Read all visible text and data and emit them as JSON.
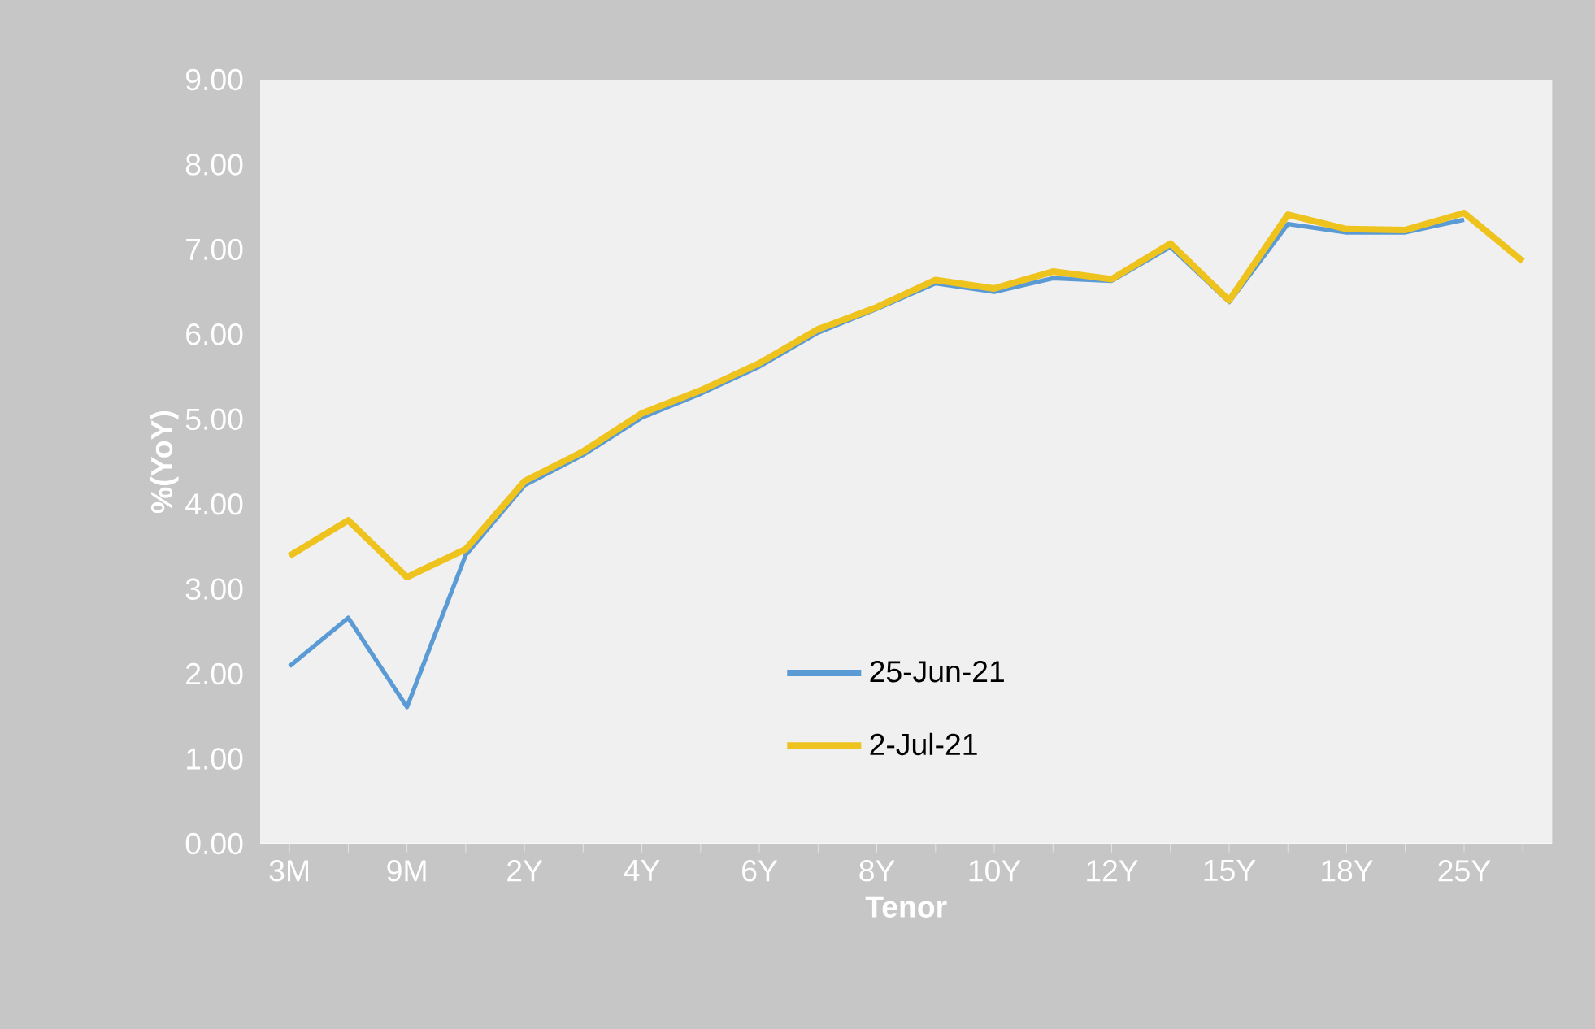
{
  "chart_data": {
    "type": "line",
    "xlabel": "Tenor",
    "ylabel": "%(YoY)",
    "categories": [
      "3M",
      null,
      "9M",
      null,
      "2Y",
      null,
      "4Y",
      null,
      "6Y",
      null,
      "8Y",
      null,
      "10Y",
      null,
      "12Y",
      null,
      "15Y",
      null,
      "18Y",
      null,
      "25Y",
      null
    ],
    "series": [
      {
        "name": "25-Jun-21",
        "color": "#5b9bd5",
        "values": [
          2.09,
          2.66,
          1.61,
          3.4,
          4.22,
          4.58,
          5.02,
          5.3,
          5.62,
          6.02,
          6.3,
          6.6,
          6.5,
          6.66,
          6.63,
          7.03,
          6.38,
          7.3,
          7.2,
          7.2,
          7.35,
          null
        ]
      },
      {
        "name": "2-Jul-21",
        "color": "#efc31d",
        "values": [
          3.39,
          3.81,
          3.14,
          3.47,
          4.27,
          4.62,
          5.07,
          5.34,
          5.66,
          6.06,
          6.32,
          6.64,
          6.54,
          6.74,
          6.65,
          7.07,
          6.4,
          7.41,
          7.24,
          7.23,
          7.43,
          6.86
        ]
      }
    ],
    "ylim": [
      0,
      9
    ],
    "yticks": [
      {
        "value": 0,
        "label": "0.00"
      },
      {
        "value": 1,
        "label": "1.00"
      },
      {
        "value": 2,
        "label": "2.00"
      },
      {
        "value": 3,
        "label": "3.00"
      },
      {
        "value": 4,
        "label": "4.00"
      },
      {
        "value": 5,
        "label": "5.00"
      },
      {
        "value": 6,
        "label": "6.00"
      },
      {
        "value": 7,
        "label": "7.00"
      },
      {
        "value": 8,
        "label": "8.00"
      },
      {
        "value": 9,
        "label": "9.00"
      }
    ],
    "legend": "bottom",
    "grid": false,
    "marker": "none",
    "line_style": "solid"
  }
}
